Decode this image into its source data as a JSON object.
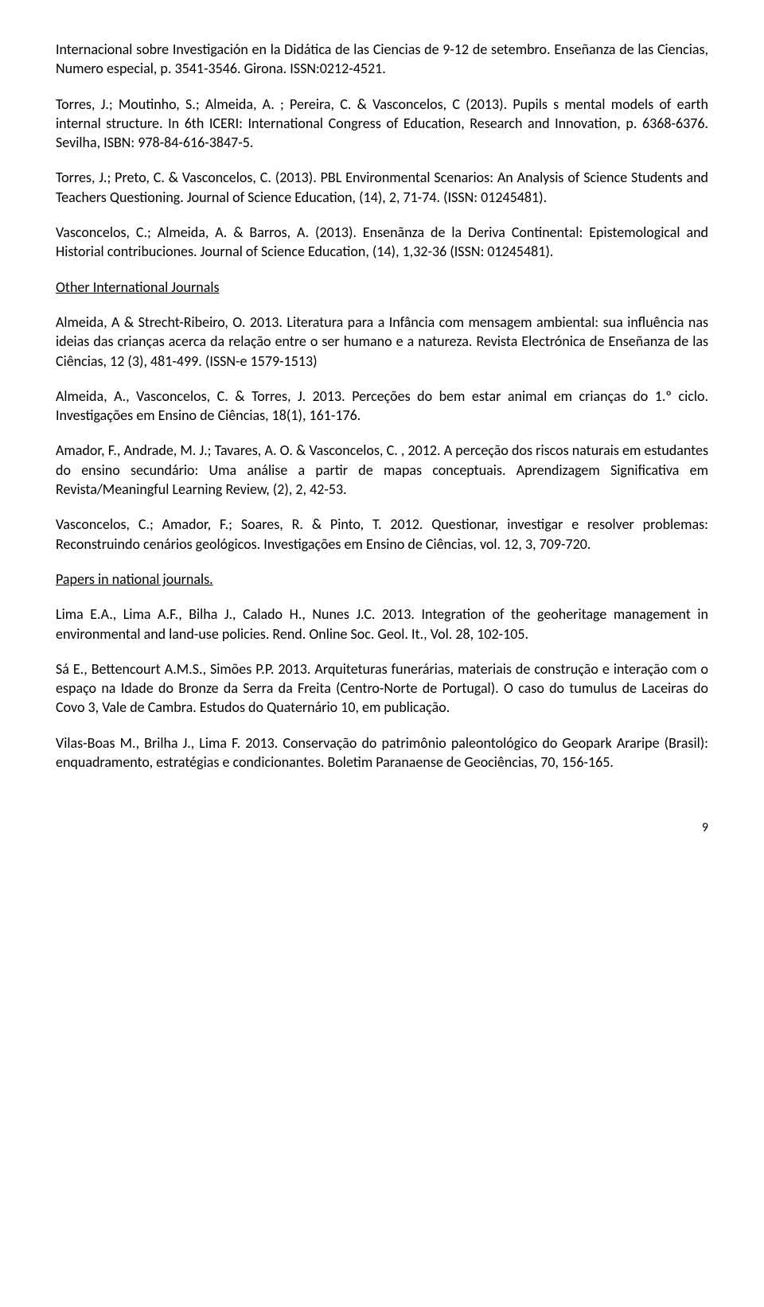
{
  "p1": "Internacional sobre Investigación en la Didática de las Ciencias de 9-12 de setembro. Enseñanza de las Ciencias, Numero especial, p. 3541-3546. Girona. ISSN:0212-4521.",
  "p2": "Torres, J.; Moutinho, S.; Almeida, A. ; Pereira, C. & Vasconcelos, C (2013). Pupils s mental models of earth internal structure. In 6th ICERI: International Congress of Education, Research and Innovation, p. 6368-6376. Sevilha, ISBN: 978-84-616-3847-5.",
  "p3": "Torres, J.; Preto, C. & Vasconcelos, C. (2013). PBL Environmental Scenarios: An Analysis of Science Students and Teachers Questioning. Journal of Science Education, (14), 2, 71-74. (ISSN: 01245481).",
  "p4": "Vasconcelos, C.; Almeida, A. & Barros, A. (2013). Ensenãnza de la Deriva Continental: Epistemological and Historial contribuciones. Journal of Science Education, (14), 1,32-36 (ISSN: 01245481).",
  "h1": "Other International Journals",
  "p5": "Almeida, A & Strecht-Ribeiro, O. 2013. Literatura para a Infância com mensagem ambiental: sua influência nas ideias das crianças acerca da relação entre o ser humano e a natureza. Revista Electrónica de Enseñanza de las Ciências, 12 (3), 481-499. (ISSN-e 1579-1513)",
  "p6": "Almeida, A., Vasconcelos, C. & Torres, J. 2013. Perceções do bem estar animal em crianças do 1.º ciclo. Investigações em Ensino de Ciências, 18(1), 161-176.",
  "p7": "Amador, F., Andrade, M. J.; Tavares, A. O. & Vasconcelos, C. , 2012. A perceção dos riscos naturais em estudantes do ensino secundário: Uma análise a partir de mapas conceptuais. Aprendizagem Significativa em Revista/Meaningful Learning Review, (2), 2, 42-53.",
  "p8": "Vasconcelos, C.; Amador, F.; Soares, R. & Pinto, T. 2012. Questionar, investigar e resolver problemas: Reconstruindo cenários geológicos. Investigações em Ensino de Ciências, vol. 12, 3, 709-720.",
  "h2": "Papers in national journals.",
  "p9": "Lima E.A., Lima A.F., Bilha J., Calado H., Nunes J.C. 2013. Integration of the geoheritage management in environmental and land-use policies. Rend. Online Soc. Geol. It., Vol. 28, 102-105.",
  "p10": "Sá E., Bettencourt A.M.S., Simões P.P. 2013. Arquiteturas funerárias, materiais de construção e interação com o espaço na Idade do Bronze da Serra da Freita (Centro-Norte de Portugal). O caso do tumulus de Laceiras do Covo 3, Vale de Cambra. Estudos do Quaternário 10, em publicação.",
  "p11": "Vilas-Boas M., Brilha J., Lima F. 2013. Conservação do patrimônio paleontológico do Geopark Araripe (Brasil): enquadramento, estratégias e condicionantes. Boletim Paranaense de Geociências, 70, 156-165.",
  "pagenum": "9"
}
